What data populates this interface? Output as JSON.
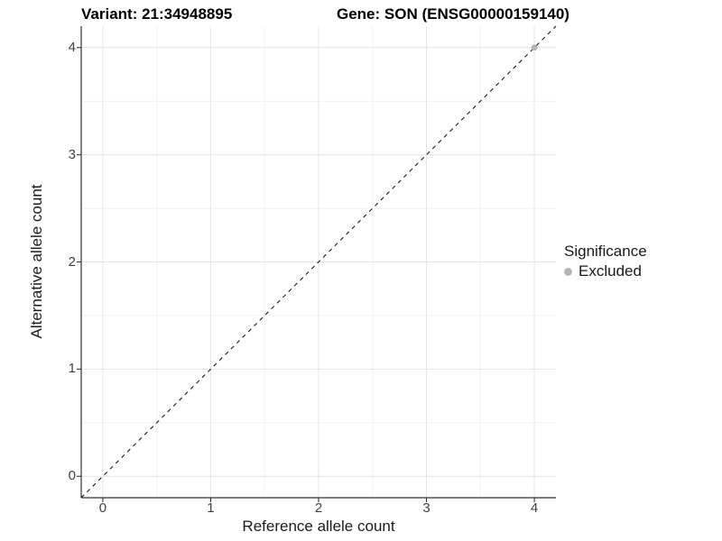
{
  "header": {
    "variant_title": "Variant: 21:34948895",
    "gene_title": "Gene: SON (ENSG00000159140)"
  },
  "legend": {
    "title": "Significance",
    "items": [
      {
        "label": "Excluded",
        "color": "#b5b5b5"
      }
    ]
  },
  "chart_data": {
    "type": "scatter",
    "title": "Variant: 21:34948895 — Gene: SON (ENSG00000159140)",
    "xlabel": "Reference allele count",
    "ylabel": "Alternative allele count",
    "xlim": [
      -0.2,
      4.2
    ],
    "ylim": [
      -0.2,
      4.2
    ],
    "x_ticks": [
      0,
      1,
      2,
      3,
      4
    ],
    "y_ticks": [
      0,
      1,
      2,
      3,
      4
    ],
    "x_minor_ticks": [
      0.5,
      1.5,
      2.5,
      3.5
    ],
    "y_minor_ticks": [
      0.5,
      1.5,
      2.5,
      3.5
    ],
    "grid": "major+minor",
    "legend_position": "right",
    "series": [
      {
        "name": "Excluded",
        "color": "#b5b5b5",
        "marker": "circle",
        "points": [
          {
            "x": 4,
            "y": 4
          }
        ]
      }
    ],
    "reference_line": {
      "slope": 1,
      "intercept": 0,
      "linestyle": "dashed",
      "color": "#1a1a1a"
    },
    "colors": {
      "grid_major": "#e4e4e4",
      "grid_minor": "#f1f1f1",
      "axis_line": "#333333",
      "tick_mark": "#333333",
      "tick_label": "#404040"
    }
  }
}
